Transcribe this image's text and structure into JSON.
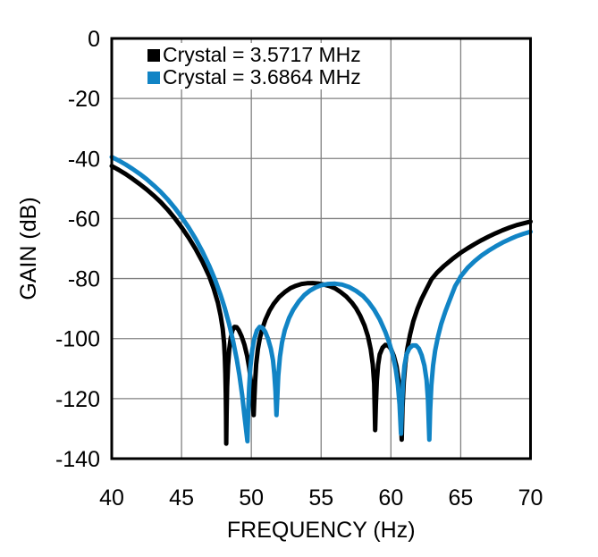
{
  "figure": {
    "background_color": "#ffffff",
    "grid_color": "#808080",
    "axis_color": "#000000",
    "text_color": "#000000"
  },
  "chart_data": {
    "type": "line",
    "title": "",
    "xlabel": "FREQUENCY (Hz)",
    "ylabel": "GAIN (dB)",
    "xlim": [
      40,
      70
    ],
    "ylim": [
      -140,
      0
    ],
    "xticks": [
      40,
      45,
      50,
      55,
      60,
      65,
      70
    ],
    "yticks": [
      0,
      -20,
      -40,
      -60,
      -80,
      -100,
      -120,
      -140
    ],
    "grid": true,
    "legend_position": "top-left-inside",
    "series": [
      {
        "name": "Crystal = 3.5717 MHz",
        "color": "#000000",
        "points": [
          [
            40,
            -42.5
          ],
          [
            40.5,
            -43.8
          ],
          [
            41,
            -45.2
          ],
          [
            41.5,
            -46.8
          ],
          [
            42,
            -48.5
          ],
          [
            42.5,
            -50.3
          ],
          [
            43,
            -52.3
          ],
          [
            43.5,
            -54.5
          ],
          [
            44,
            -57
          ],
          [
            44.5,
            -59.8
          ],
          [
            45,
            -62.9
          ],
          [
            45.5,
            -66.3
          ],
          [
            46,
            -70.1
          ],
          [
            46.5,
            -74.4
          ],
          [
            47,
            -79.4
          ],
          [
            47.3,
            -83.3
          ],
          [
            47.6,
            -88
          ],
          [
            47.8,
            -92.3
          ],
          [
            47.95,
            -96.8
          ],
          [
            48.05,
            -101.5
          ],
          [
            48.1,
            -106
          ],
          [
            48.14,
            -111.5
          ],
          [
            48.17,
            -118.5
          ],
          [
            48.19,
            -126
          ],
          [
            48.2,
            -135
          ],
          [
            48.23,
            -125
          ],
          [
            48.27,
            -116
          ],
          [
            48.33,
            -109
          ],
          [
            48.42,
            -103.5
          ],
          [
            48.52,
            -99.8
          ],
          [
            48.65,
            -97.2
          ],
          [
            48.8,
            -96.1
          ],
          [
            48.95,
            -96.2
          ],
          [
            49.1,
            -97.2
          ],
          [
            49.3,
            -99.2
          ],
          [
            49.5,
            -102
          ],
          [
            49.7,
            -105.8
          ],
          [
            49.85,
            -109.8
          ],
          [
            50,
            -115.5
          ],
          [
            50.08,
            -120
          ],
          [
            50.13,
            -123.5
          ],
          [
            50.17,
            -125.5
          ],
          [
            50.21,
            -121
          ],
          [
            50.27,
            -114.5
          ],
          [
            50.35,
            -108.5
          ],
          [
            50.47,
            -103.5
          ],
          [
            50.62,
            -99.7
          ],
          [
            50.8,
            -96.5
          ],
          [
            51,
            -93.8
          ],
          [
            51.3,
            -90.7
          ],
          [
            51.6,
            -88.4
          ],
          [
            52,
            -86.1
          ],
          [
            52.4,
            -84.5
          ],
          [
            52.8,
            -83.2
          ],
          [
            53.2,
            -82.4
          ],
          [
            53.6,
            -81.8
          ],
          [
            54,
            -81.55
          ],
          [
            54.4,
            -81.5
          ],
          [
            54.8,
            -81.65
          ],
          [
            55.2,
            -82
          ],
          [
            55.6,
            -82.5
          ],
          [
            56,
            -83.3
          ],
          [
            56.4,
            -84.5
          ],
          [
            56.8,
            -86
          ],
          [
            57.2,
            -88
          ],
          [
            57.5,
            -89.9
          ],
          [
            57.8,
            -92.4
          ],
          [
            58.1,
            -95.6
          ],
          [
            58.35,
            -99.2
          ],
          [
            58.55,
            -103.5
          ],
          [
            58.7,
            -108.5
          ],
          [
            58.8,
            -115
          ],
          [
            58.87,
            -130.5
          ],
          [
            58.92,
            -122
          ],
          [
            58.99,
            -114
          ],
          [
            59.08,
            -108.8
          ],
          [
            59.2,
            -105.3
          ],
          [
            59.4,
            -103
          ],
          [
            59.6,
            -102.1
          ],
          [
            59.8,
            -102.3
          ],
          [
            60,
            -103.4
          ],
          [
            60.2,
            -105.7
          ],
          [
            60.4,
            -109.2
          ],
          [
            60.55,
            -113.8
          ],
          [
            60.65,
            -119.5
          ],
          [
            60.77,
            -133.7
          ],
          [
            60.83,
            -123
          ],
          [
            60.92,
            -114.5
          ],
          [
            61.03,
            -108.5
          ],
          [
            61.17,
            -103.5
          ],
          [
            61.37,
            -98.7
          ],
          [
            61.6,
            -94.3
          ],
          [
            61.9,
            -90.1
          ],
          [
            62.2,
            -86.7
          ],
          [
            62.5,
            -83.9
          ],
          [
            62.9,
            -80.3
          ],
          [
            63.3,
            -78
          ],
          [
            63.8,
            -75.8
          ],
          [
            64.4,
            -73.5
          ],
          [
            65,
            -71.4
          ],
          [
            65.5,
            -69.9
          ],
          [
            66,
            -68.5
          ],
          [
            66.5,
            -67.2
          ],
          [
            67,
            -66
          ],
          [
            67.5,
            -64.9
          ],
          [
            68,
            -63.9
          ],
          [
            68.5,
            -63
          ],
          [
            69,
            -62.2
          ],
          [
            69.5,
            -61.6
          ],
          [
            70,
            -61
          ]
        ]
      },
      {
        "name": "Crystal = 3.6864 MHz",
        "color": "#1184C5",
        "points": [
          [
            40,
            -39.5
          ],
          [
            40.5,
            -40.7
          ],
          [
            41,
            -42
          ],
          [
            41.5,
            -43.5
          ],
          [
            42,
            -45.1
          ],
          [
            42.5,
            -46.9
          ],
          [
            43,
            -48.9
          ],
          [
            43.5,
            -51.1
          ],
          [
            44,
            -53.6
          ],
          [
            44.5,
            -56.4
          ],
          [
            45,
            -59.5
          ],
          [
            45.5,
            -62.9
          ],
          [
            46,
            -66.7
          ],
          [
            46.5,
            -71
          ],
          [
            47,
            -75.9
          ],
          [
            47.4,
            -80.4
          ],
          [
            47.8,
            -85.5
          ],
          [
            48.1,
            -89.9
          ],
          [
            48.4,
            -95
          ],
          [
            48.7,
            -101
          ],
          [
            48.95,
            -106.8
          ],
          [
            49.15,
            -112.3
          ],
          [
            49.35,
            -119
          ],
          [
            49.5,
            -125.5
          ],
          [
            49.72,
            -134.2
          ],
          [
            49.77,
            -125
          ],
          [
            49.84,
            -116.5
          ],
          [
            49.93,
            -109.5
          ],
          [
            50.06,
            -104
          ],
          [
            50.2,
            -100.3
          ],
          [
            50.4,
            -97.3
          ],
          [
            50.6,
            -96.1
          ],
          [
            50.8,
            -96.4
          ],
          [
            51,
            -97.8
          ],
          [
            51.2,
            -100.1
          ],
          [
            51.4,
            -103.4
          ],
          [
            51.55,
            -107.2
          ],
          [
            51.65,
            -111.8
          ],
          [
            51.73,
            -117.5
          ],
          [
            51.8,
            -125.5
          ],
          [
            51.85,
            -120.5
          ],
          [
            51.93,
            -112.5
          ],
          [
            52.05,
            -106
          ],
          [
            52.2,
            -101.3
          ],
          [
            52.4,
            -97.2
          ],
          [
            52.7,
            -93.2
          ],
          [
            53,
            -90.4
          ],
          [
            53.4,
            -87.6
          ],
          [
            53.8,
            -85.5
          ],
          [
            54.2,
            -84
          ],
          [
            54.6,
            -83
          ],
          [
            55,
            -82.2
          ],
          [
            55.5,
            -81.8
          ],
          [
            56,
            -81.7
          ],
          [
            56.5,
            -82
          ],
          [
            57,
            -82.8
          ],
          [
            57.5,
            -84.1
          ],
          [
            58,
            -85.8
          ],
          [
            58.4,
            -87.8
          ],
          [
            58.8,
            -90.4
          ],
          [
            59.2,
            -93.6
          ],
          [
            59.6,
            -97.8
          ],
          [
            59.9,
            -101.7
          ],
          [
            60.15,
            -105.8
          ],
          [
            60.35,
            -110.3
          ],
          [
            60.5,
            -115.3
          ],
          [
            60.62,
            -122
          ],
          [
            60.72,
            -131.7
          ],
          [
            60.79,
            -122.5
          ],
          [
            60.87,
            -114.5
          ],
          [
            60.97,
            -109
          ],
          [
            61.12,
            -105.3
          ],
          [
            61.32,
            -103.3
          ],
          [
            61.55,
            -102.3
          ],
          [
            61.8,
            -102.3
          ],
          [
            62,
            -103.3
          ],
          [
            62.2,
            -105.5
          ],
          [
            62.4,
            -109
          ],
          [
            62.55,
            -113.8
          ],
          [
            62.65,
            -120
          ],
          [
            62.75,
            -133.7
          ],
          [
            62.81,
            -124
          ],
          [
            62.9,
            -115.5
          ],
          [
            63.02,
            -109
          ],
          [
            63.17,
            -104
          ],
          [
            63.37,
            -99.3
          ],
          [
            63.6,
            -95.1
          ],
          [
            63.9,
            -91
          ],
          [
            64.2,
            -87.3
          ],
          [
            64.6,
            -82.5
          ],
          [
            64.85,
            -80.6
          ],
          [
            65,
            -79.3
          ],
          [
            65.5,
            -76.4
          ],
          [
            66,
            -74.2
          ],
          [
            66.5,
            -72.3
          ],
          [
            67,
            -70.7
          ],
          [
            67.5,
            -69.3
          ],
          [
            68,
            -68
          ],
          [
            68.5,
            -66.9
          ],
          [
            69,
            -65.9
          ],
          [
            69.5,
            -65.1
          ],
          [
            70,
            -64.4
          ]
        ]
      }
    ]
  }
}
